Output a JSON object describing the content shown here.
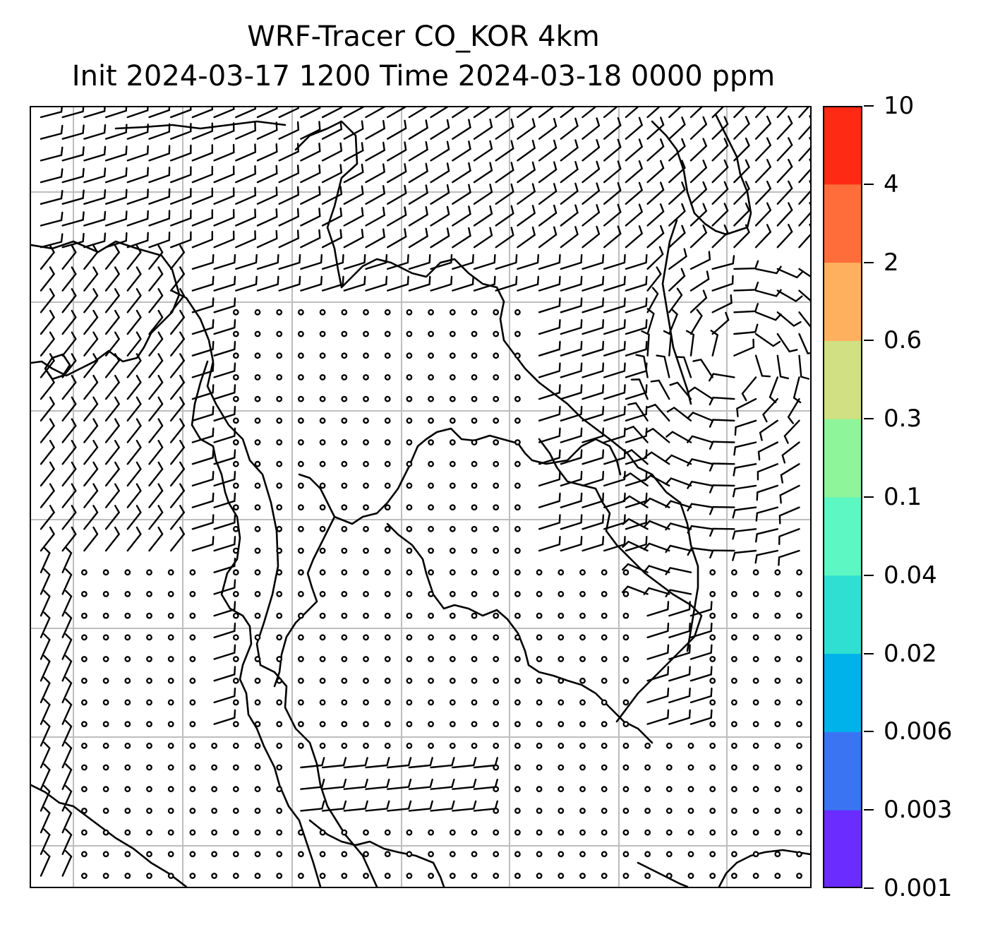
{
  "title": {
    "line1": "WRF-Tracer CO_KOR 4km",
    "line2": "Init 2024-03-17 1200 Time 2024-03-18 0000 ppm"
  },
  "colorbar": {
    "labels": [
      "10",
      "4",
      "2",
      "0.6",
      "0.3",
      "0.1",
      "0.04",
      "0.02",
      "0.006",
      "0.003",
      "0.001"
    ],
    "levels": [
      0.001,
      0.003,
      0.006,
      0.02,
      0.04,
      0.1,
      0.3,
      0.6,
      2,
      4,
      10
    ],
    "colors": [
      "#6a2cff",
      "#3a74f2",
      "#00b2ea",
      "#2fe0d2",
      "#5cf7c2",
      "#8ef59a",
      "#d0e083",
      "#ffb05e",
      "#ff6d3a",
      "#ff2a14"
    ]
  },
  "map": {
    "graticule_color": "#bdbdbd",
    "coast_color": "#000000",
    "barb_color": "#000000",
    "wind_field": "wind barbs with calm-circle markers"
  }
}
